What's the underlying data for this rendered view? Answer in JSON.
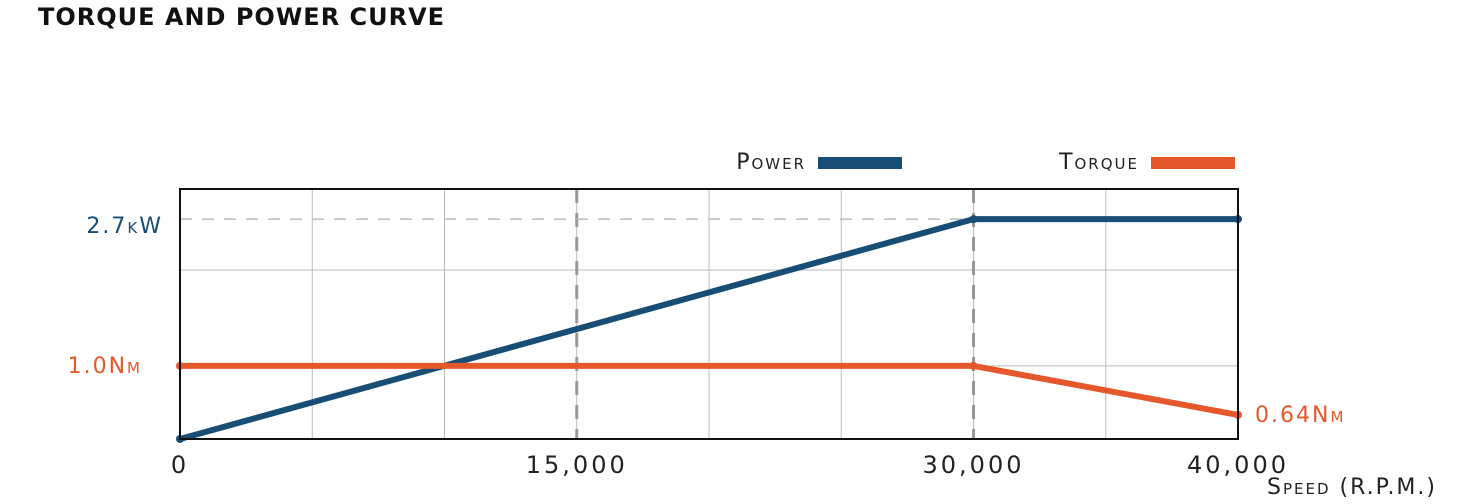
{
  "chart_data": {
    "type": "line",
    "title": "TORQUE AND POWER CURVE",
    "x_label": "Speed (R.P.M.)",
    "x": [
      0,
      30000,
      40000
    ],
    "series": [
      {
        "name": "Power",
        "color": "#184e76",
        "values": [
          0,
          2.7,
          2.7
        ]
      },
      {
        "name": "Torque",
        "color": "#e5582b",
        "values": [
          1.0,
          1.0,
          0.64
        ],
        "axis": "y2"
      }
    ],
    "xlim": [
      0,
      40000
    ],
    "xticks": [
      0,
      {
        "value": 15000,
        "label": "15,000"
      },
      {
        "value": 30000,
        "label": "30,000"
      },
      {
        "value": 40000,
        "label": "40,000"
      }
    ],
    "ylim": [
      0,
      3.07
    ],
    "yticks": [
      {
        "value": 2.7,
        "label": "2.7kW"
      }
    ],
    "y2lim": [
      0.463,
      2.3
    ],
    "y2ticks": [
      {
        "value": 1.0,
        "label": "1.0Nm"
      },
      {
        "value": 0.64,
        "label": "0.64Nm"
      }
    ],
    "grid": true,
    "legend": "top-right"
  }
}
